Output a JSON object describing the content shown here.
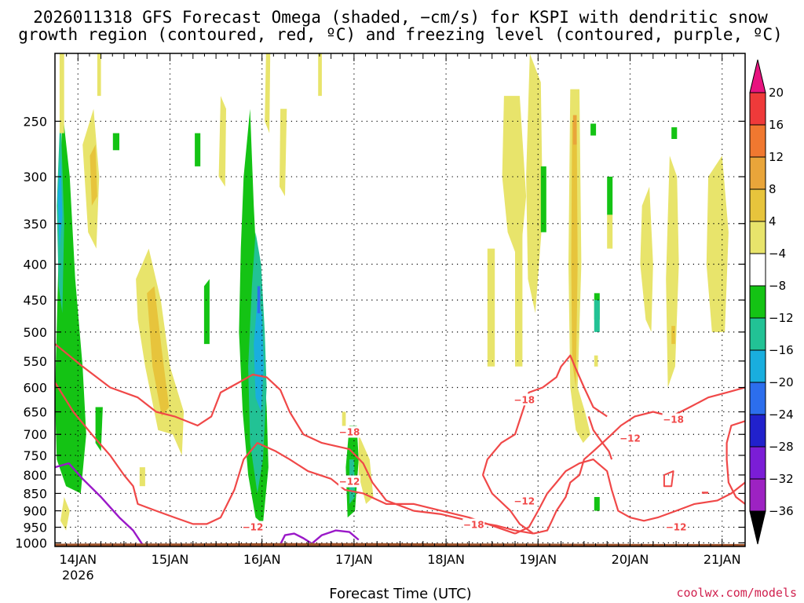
{
  "chart_data": {
    "type": "heatmap",
    "title": [
      "2026011318 GFS Forecast Omega (shaded, −cm/s) for KSPI with dendritic snow",
      "growth region (contoured, red, ºC) and freezing level (contoured, purple, ºC)"
    ],
    "xlabel": "Forecast Time (UTC)",
    "ylabel": "",
    "x_ticks": [
      {
        "label": "14JAN",
        "sub": "2026",
        "t": 0.25
      },
      {
        "label": "15JAN",
        "t": 1.25
      },
      {
        "label": "16JAN",
        "t": 2.25
      },
      {
        "label": "17JAN",
        "t": 3.25
      },
      {
        "label": "18JAN",
        "t": 4.25
      },
      {
        "label": "19JAN",
        "t": 5.25
      },
      {
        "label": "20JAN",
        "t": 6.25
      },
      {
        "label": "21JAN",
        "t": 7.25
      }
    ],
    "xlim": [
      0,
      7.5
    ],
    "y_ticks": [
      250,
      300,
      350,
      400,
      450,
      500,
      550,
      600,
      650,
      700,
      750,
      800,
      850,
      900,
      950,
      1000
    ],
    "ylim_hPa": [
      200,
      1012
    ],
    "colorbar": {
      "ticks": [
        "20",
        "16",
        "12",
        "8",
        "4",
        "−4",
        "−8",
        "−12",
        "−16",
        "−20",
        "−24",
        "−28",
        "−32",
        "−36"
      ],
      "colors": [
        "#ef3a3a",
        "#f07830",
        "#e9a53a",
        "#e7c43c",
        "#e8e46b",
        "#ffffff",
        "#14c314",
        "#22c295",
        "#19aede",
        "#2c6eed",
        "#2121cc",
        "#7b1dd6",
        "#9d22c2",
        "#a4a4a4"
      ],
      "top_color": "#e8137f",
      "bottom_color": "#000000"
    },
    "series": [
      {
        "name": "-18C isotherm",
        "color": "#f04848",
        "labels": [
          "−18",
          "−18",
          "−18",
          "−18"
        ]
      },
      {
        "name": "-12C isotherm",
        "color": "#f04848",
        "labels": [
          "−12",
          "−12",
          "−12",
          "−12",
          "−12"
        ]
      },
      {
        "name": "0C freezing level",
        "color": "#9a18c8"
      }
    ],
    "ground_color": "#9b4f26",
    "contour_labels": [
      {
        "text": "−18",
        "t": 3.2,
        "p": 695
      },
      {
        "text": "−18",
        "t": 4.55,
        "p": 943
      },
      {
        "text": "−18",
        "t": 5.1,
        "p": 625
      },
      {
        "text": "−18",
        "t": 6.72,
        "p": 667
      },
      {
        "text": "−12",
        "t": 2.15,
        "p": 950
      },
      {
        "text": "−12",
        "t": 3.2,
        "p": 818
      },
      {
        "text": "−12",
        "t": 5.1,
        "p": 872
      },
      {
        "text": "−12",
        "t": 6.25,
        "p": 710
      },
      {
        "text": "−12",
        "t": 6.75,
        "p": 950
      }
    ]
  },
  "credit": "coolwx.com/models"
}
